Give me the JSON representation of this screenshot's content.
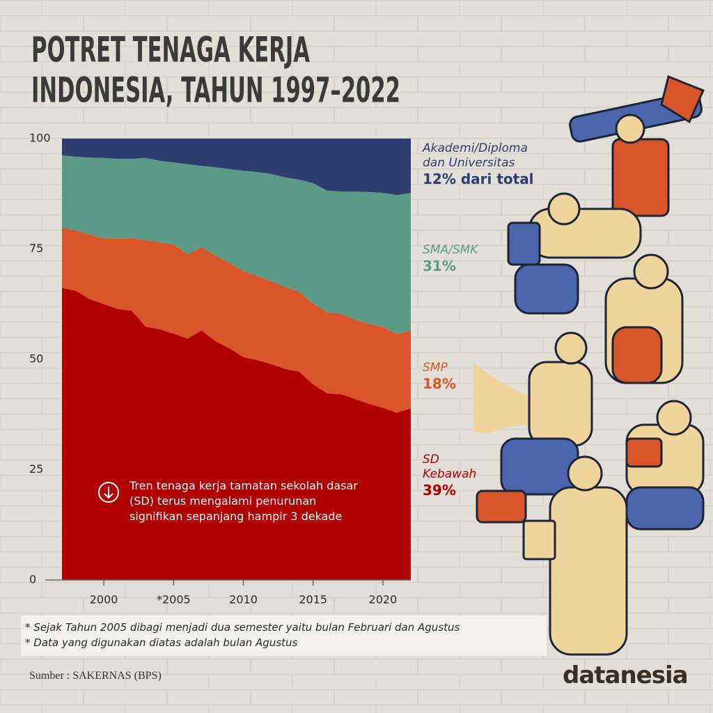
{
  "chart_data": {
    "type": "stacked-area",
    "title": [
      "POTRET TENAGA KERJA",
      "INDONESIA, TAHUN 1997–2022"
    ],
    "x": [
      1997,
      1998,
      1999,
      2000,
      2001,
      2002,
      2003,
      2004,
      2005,
      2006,
      2007,
      2008,
      2009,
      2010,
      2011,
      2012,
      2013,
      2014,
      2015,
      2016,
      2017,
      2018,
      2019,
      2020,
      2021,
      2022
    ],
    "series": [
      {
        "name": "SD Kebawah",
        "end_label": "39%",
        "color": "#b00000",
        "values": [
          66.2,
          65.5,
          63.6,
          62.5,
          61.4,
          61.0,
          57.4,
          56.8,
          55.8,
          54.7,
          56.5,
          54.1,
          52.5,
          50.5,
          49.8,
          48.9,
          47.8,
          47.2,
          44.3,
          42.3,
          42.1,
          41.0,
          39.9,
          39.0,
          37.9,
          38.9
        ]
      },
      {
        "name": "SMP",
        "end_label": "18%",
        "color": "#d9562a",
        "values": [
          13.6,
          13.7,
          14.6,
          14.9,
          16.0,
          16.4,
          19.6,
          19.7,
          20.2,
          19.1,
          18.9,
          19.4,
          19.3,
          19.5,
          19.1,
          18.8,
          18.6,
          18.1,
          18.3,
          18.3,
          18.2,
          18.0,
          18.1,
          18.4,
          17.8,
          17.6
        ]
      },
      {
        "name": "SMA/SMK",
        "end_label": "31%",
        "color": "#5a9a87",
        "values": [
          16.4,
          16.7,
          17.5,
          18.2,
          18.0,
          18.0,
          18.6,
          18.5,
          18.6,
          20.4,
          18.4,
          20.0,
          21.3,
          22.7,
          23.5,
          24.3,
          24.8,
          25.4,
          27.3,
          27.6,
          27.7,
          29.0,
          29.9,
          30.3,
          31.5,
          31.2
        ]
      },
      {
        "name": "Akademi/Diploma dan Universitas",
        "end_label": "12% dari total",
        "color": "#2e3d70",
        "values": [
          3.8,
          4.1,
          4.3,
          4.4,
          4.6,
          4.6,
          4.4,
          5.0,
          5.4,
          5.8,
          6.2,
          6.5,
          6.9,
          7.3,
          7.6,
          8.0,
          8.8,
          9.3,
          10.1,
          11.8,
          12.0,
          12.0,
          12.1,
          12.3,
          12.8,
          12.3
        ]
      }
    ],
    "xlim": [
      1997,
      2022
    ],
    "xticks": [
      2000,
      {
        "value": 2005,
        "label": "*2005"
      },
      2010,
      2015,
      2020
    ],
    "ylim": [
      0,
      100
    ],
    "yticks": [
      0,
      25,
      50,
      75,
      100
    ],
    "annotation": "Tren tenaga kerja tamatan sekolah dasar (SD) terus mengalami penurunan signifikan sepanjang hampir 3 dekade"
  },
  "footnotes": [
    "* Sejak Tahun 2005 dibagi menjadi dua semester yaitu bulan Februari dan Agustus",
    "* Data yang digunakan diatas adalah bulan Agustus"
  ],
  "source": "Sumber : SAKERNAS (BPS)",
  "brand": "datanesia"
}
